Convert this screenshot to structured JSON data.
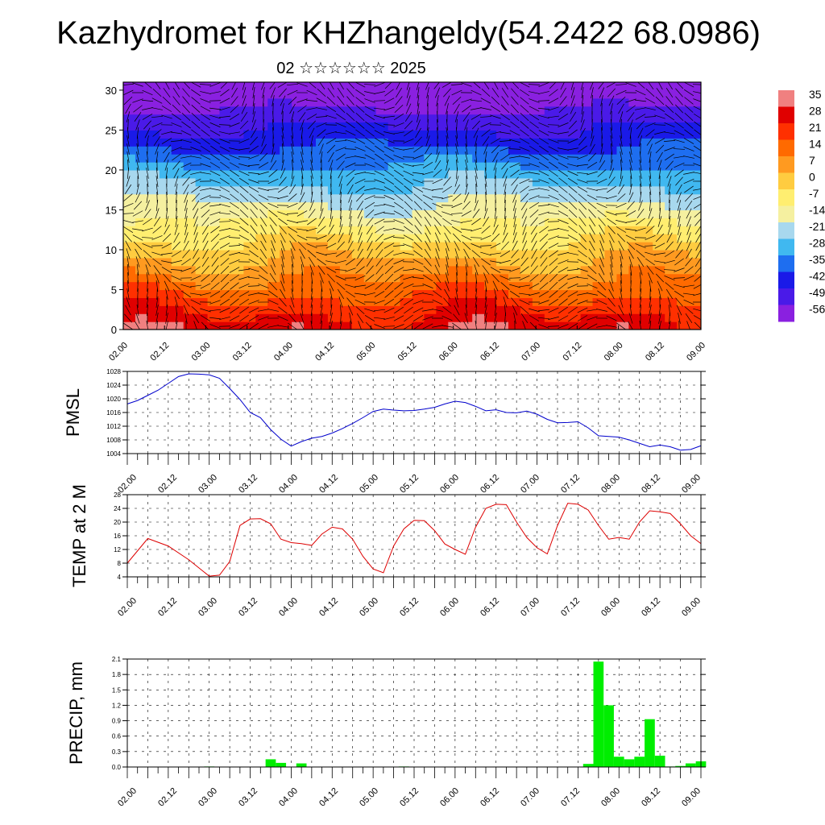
{
  "title": "Kazhydromet for KHZhangeldy(54.2422 68.0986)",
  "subtitle": "02 ☆☆☆☆☆☆ 2025",
  "time_ticks": [
    "02.00",
    "02.12",
    "03.00",
    "03.12",
    "04.00",
    "04.12",
    "05.00",
    "05.12",
    "06.00",
    "06.12",
    "07.00",
    "07.12",
    "08.00",
    "08.12",
    "09.00"
  ],
  "chart_data": [
    {
      "type": "heatmap",
      "name": "cross-section",
      "y_ticks": [
        "0",
        "5",
        "10",
        "15",
        "20",
        "25",
        "30"
      ],
      "ylim": [
        0,
        31
      ],
      "colorbar": {
        "labels": [
          "35",
          "28",
          "21",
          "14",
          "7",
          "0",
          "-7",
          "-14",
          "-21",
          "-28",
          "-35",
          "-42",
          "-49",
          "-56"
        ],
        "colors": [
          "#f08080",
          "#e00000",
          "#ff3000",
          "#ff6a00",
          "#ff9a20",
          "#ffcc40",
          "#ffee70",
          "#f5f0a0",
          "#a8d8ee",
          "#40b8f0",
          "#1e6ef0",
          "#1a1ae8",
          "#4a1ae8",
          "#8a20e0"
        ]
      },
      "y_index_hint": "levels 0-30"
    },
    {
      "type": "line",
      "name": "PMSL",
      "ylabel": "PMSL",
      "y_ticks": [
        "1004",
        "1008",
        "1012",
        "1016",
        "1020",
        "1024",
        "1028"
      ],
      "ylim": [
        1004,
        1028
      ],
      "color": "#0000cc",
      "x": [
        0,
        3,
        6,
        9,
        12,
        15,
        18,
        21,
        24,
        27,
        30,
        33,
        36,
        39,
        42,
        45,
        48,
        51,
        54,
        57,
        60,
        63,
        66,
        69,
        72,
        75,
        78,
        81,
        84,
        87,
        90,
        93,
        96,
        99,
        102,
        105,
        108,
        111,
        114,
        117,
        120,
        123,
        126,
        129,
        132,
        135,
        138,
        141,
        144,
        147,
        150,
        153,
        156,
        159,
        162,
        165,
        168
      ],
      "values": [
        1018.5,
        1019.5,
        1021,
        1022.5,
        1024.5,
        1026.5,
        1027.3,
        1027.2,
        1027.0,
        1026.0,
        1023.0,
        1019.8,
        1016.0,
        1014.5,
        1011.0,
        1008.2,
        1006.2,
        1007.5,
        1008.5,
        1009.0,
        1010.0,
        1011.3,
        1012.8,
        1014.5,
        1016.3,
        1017.0,
        1016.7,
        1016.5,
        1016.6,
        1017.0,
        1017.5,
        1018.5,
        1019.3,
        1018.9,
        1017.8,
        1016.5,
        1016.8,
        1016.0,
        1015.9,
        1016.4,
        1015.5,
        1014.0,
        1013.0,
        1013.1,
        1013.3,
        1011.5,
        1009.2,
        1009.0,
        1008.8,
        1008.0,
        1007.0,
        1006.0,
        1006.5,
        1006.0,
        1005.0,
        1005.2,
        1006.3
      ]
    },
    {
      "type": "line",
      "name": "TEMP at 2 M",
      "ylabel": "TEMP at 2 M",
      "y_ticks": [
        "4",
        "8",
        "12",
        "16",
        "20",
        "24",
        "28"
      ],
      "ylim": [
        4,
        28
      ],
      "color": "#dd0000",
      "x": [
        0,
        6,
        12,
        18,
        24,
        27,
        30,
        33,
        36,
        39,
        42,
        45,
        48,
        51,
        54,
        57,
        60,
        63,
        66,
        69,
        72,
        75,
        78,
        81,
        84,
        87,
        90,
        93,
        96,
        99,
        102,
        105,
        108,
        111,
        114,
        117,
        120,
        123,
        126,
        129,
        132,
        135,
        138,
        141,
        144,
        147,
        150,
        153,
        156,
        159,
        162,
        165,
        168
      ],
      "values": [
        8,
        15.2,
        13,
        9,
        4.2,
        4.5,
        8.5,
        19,
        20.9,
        21,
        19.5,
        15,
        14,
        13.7,
        13.2,
        16.5,
        18.5,
        18,
        15,
        10,
        6.3,
        5.2,
        13,
        18,
        20.5,
        20.4,
        17.5,
        13.6,
        12,
        10.6,
        18.5,
        24,
        25.2,
        25.1,
        20,
        15.5,
        12.5,
        10.7,
        19,
        25.5,
        25.2,
        23.5,
        19,
        15,
        15.5,
        15,
        20,
        23.3,
        23,
        22.5,
        19.5,
        16,
        13.7
      ]
    },
    {
      "type": "bar",
      "name": "PRECIP, mm",
      "ylabel": "PRECIP, mm",
      "y_ticks": [
        "0.0",
        "0.3",
        "0.6",
        "0.9",
        "1.2",
        "1.5",
        "1.8",
        "2.1"
      ],
      "ylim": [
        0,
        2.1
      ],
      "color": "#00ee00",
      "x": [
        24,
        42,
        45,
        48,
        51,
        81,
        135,
        138,
        141,
        144,
        147,
        150,
        153,
        156,
        159,
        162,
        165,
        168
      ],
      "values": [
        0.01,
        0.15,
        0.08,
        0.0,
        0.07,
        0.01,
        0.06,
        2.05,
        1.2,
        0.2,
        0.15,
        0.2,
        0.93,
        0.22,
        0.01,
        0.02,
        0.07,
        0.11
      ]
    }
  ]
}
